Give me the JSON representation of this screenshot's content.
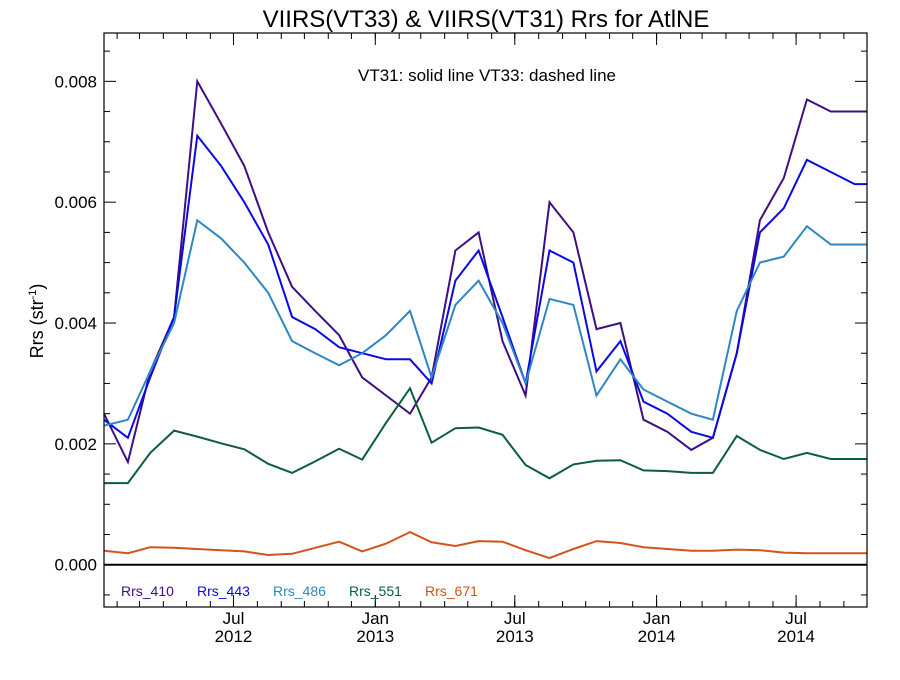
{
  "chart_data": {
    "type": "line",
    "title": "VIIRS(VT33) & VIIRS(VT31)  Rrs for AtlNE",
    "annotation": "VT31: solid line   VT33: dashed line",
    "ylabel": "Rrs (str",
    "ylabel_superscript": "-1",
    "ylabel_suffix": ")",
    "xlabel": "",
    "ylim": [
      -0.0007,
      0.0088
    ],
    "yticks": [
      0.0,
      0.002,
      0.004,
      0.006,
      0.008
    ],
    "ytick_labels": [
      "0.000",
      "0.002",
      "0.004",
      "0.006",
      "0.008"
    ],
    "y_minor_step": 0.0005,
    "xlim": [
      "2012-01-15",
      "2014-10-01"
    ],
    "xticks": [
      {
        "date": "2012-07-01",
        "line1": "Jul",
        "line2": "2012"
      },
      {
        "date": "2013-01-01",
        "line1": "Jan",
        "line2": "2013"
      },
      {
        "date": "2013-07-01",
        "line1": "Jul",
        "line2": "2013"
      },
      {
        "date": "2014-01-01",
        "line1": "Jan",
        "line2": "2014"
      },
      {
        "date": "2014-07-01",
        "line1": "Jul",
        "line2": "2014"
      }
    ],
    "x_minor_monthly": true,
    "reference_line": 0.0,
    "grid": false,
    "legend_position": "bottom-left",
    "x": [
      "2012-01-15",
      "2012-02-15",
      "2012-03-15",
      "2012-04-15",
      "2012-05-15",
      "2012-06-15",
      "2012-07-15",
      "2012-08-15",
      "2012-09-15",
      "2012-10-15",
      "2012-11-15",
      "2012-12-15",
      "2013-01-15",
      "2013-02-15",
      "2013-03-15",
      "2013-04-15",
      "2013-05-15",
      "2013-06-15",
      "2013-07-15",
      "2013-08-15",
      "2013-09-15",
      "2013-10-15",
      "2013-11-15",
      "2013-12-15",
      "2014-01-15",
      "2014-02-15",
      "2014-03-15",
      "2014-04-15",
      "2014-05-15",
      "2014-06-15",
      "2014-07-15",
      "2014-08-15",
      "2014-09-15",
      "2014-10-01"
    ],
    "series": [
      {
        "name": "Rrs_410",
        "color": "#3d0f86",
        "values": [
          0.0025,
          0.0017,
          0.0032,
          0.0041,
          0.008,
          0.0073,
          0.0066,
          0.0055,
          0.0046,
          0.0042,
          0.0038,
          0.0031,
          0.0028,
          0.0025,
          0.0031,
          0.0052,
          0.0055,
          0.0037,
          0.0028,
          0.006,
          0.0055,
          0.0039,
          0.004,
          0.0024,
          0.0022,
          0.0019,
          0.0021,
          0.0035,
          0.0057,
          0.0064,
          0.0077,
          0.0075,
          0.0075,
          0.0075
        ]
      },
      {
        "name": "Rrs_443",
        "color": "#0a0ae6",
        "values": [
          0.0024,
          0.0021,
          0.0031,
          0.0041,
          0.0071,
          0.0066,
          0.006,
          0.0053,
          0.0041,
          0.0039,
          0.0036,
          0.0035,
          0.0034,
          0.0034,
          0.003,
          0.0047,
          0.0052,
          0.0041,
          0.003,
          0.0052,
          0.005,
          0.0032,
          0.0037,
          0.0027,
          0.0025,
          0.0022,
          0.0021,
          0.0035,
          0.0055,
          0.0059,
          0.0067,
          0.0065,
          0.0063,
          0.0063
        ]
      },
      {
        "name": "Rrs_486",
        "color": "#2f86c6",
        "values": [
          0.0023,
          0.0024,
          0.0032,
          0.004,
          0.0057,
          0.0054,
          0.005,
          0.0045,
          0.0037,
          0.0035,
          0.0033,
          0.0035,
          0.0038,
          0.0042,
          0.0031,
          0.0043,
          0.0047,
          0.004,
          0.003,
          0.0044,
          0.0043,
          0.0028,
          0.0034,
          0.0029,
          0.0027,
          0.0025,
          0.0024,
          0.0042,
          0.005,
          0.0051,
          0.0056,
          0.0053,
          0.0053,
          0.0053
        ]
      },
      {
        "name": "Rrs_551",
        "color": "#0c5e36",
        "values": [
          0.00135,
          0.00135,
          0.00185,
          0.00222,
          0.00212,
          0.00201,
          0.00191,
          0.00167,
          0.00152,
          0.00171,
          0.00192,
          0.00174,
          0.00235,
          0.00292,
          0.00202,
          0.00226,
          0.00227,
          0.00215,
          0.00165,
          0.00143,
          0.00166,
          0.00172,
          0.00173,
          0.00156,
          0.00155,
          0.00152,
          0.00152,
          0.00213,
          0.0019,
          0.00175,
          0.00185,
          0.00175,
          0.00175,
          0.00175
        ]
      },
      {
        "name": "Rrs_671",
        "color": "#d4531b",
        "values": [
          0.00023,
          0.00019,
          0.00029,
          0.00028,
          0.00026,
          0.00024,
          0.00022,
          0.00016,
          0.00018,
          0.00028,
          0.00038,
          0.00022,
          0.00035,
          0.00054,
          0.00037,
          0.00031,
          0.00039,
          0.00038,
          0.00024,
          0.00011,
          0.00026,
          0.00039,
          0.00036,
          0.00029,
          0.00026,
          0.00023,
          0.00023,
          0.00025,
          0.00024,
          0.0002,
          0.00019,
          0.00019,
          0.00019,
          0.00019
        ]
      }
    ]
  }
}
